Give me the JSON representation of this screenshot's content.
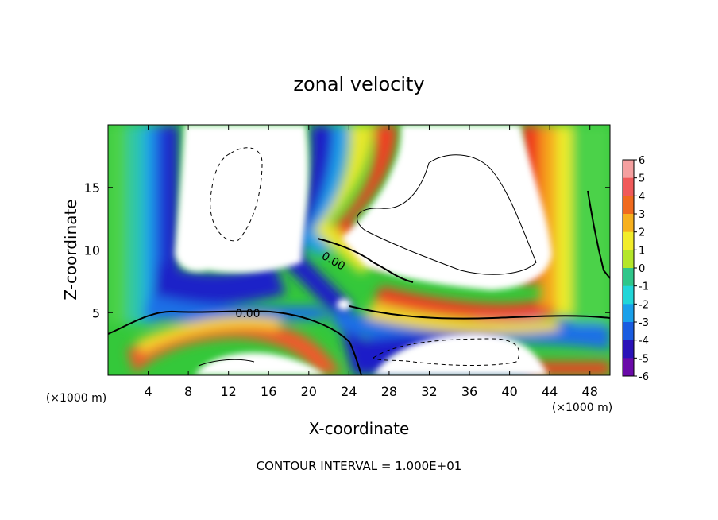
{
  "chart_data": {
    "type": "heatmap",
    "title": "zonal velocity",
    "xlabel": "X-coordinate",
    "ylabel": "Z-coordinate",
    "x_unit_label": "(×1000 m)",
    "y_unit_label": "(×1000 m)",
    "xlim": [
      0,
      50
    ],
    "ylim": [
      0,
      20
    ],
    "x_ticks": [
      4,
      8,
      12,
      16,
      20,
      24,
      28,
      32,
      36,
      40,
      44,
      48
    ],
    "y_ticks": [
      5,
      10,
      15
    ],
    "colorbar": {
      "min": -6,
      "max": 6,
      "labels": [
        6,
        5,
        4,
        3,
        2,
        1,
        0,
        -1,
        -2,
        -3,
        -4,
        -5,
        -6
      ]
    },
    "contour_labels": [
      "0.00",
      "0.00"
    ],
    "footer": "CONTOUR INTERVAL = 1.000E+01"
  }
}
